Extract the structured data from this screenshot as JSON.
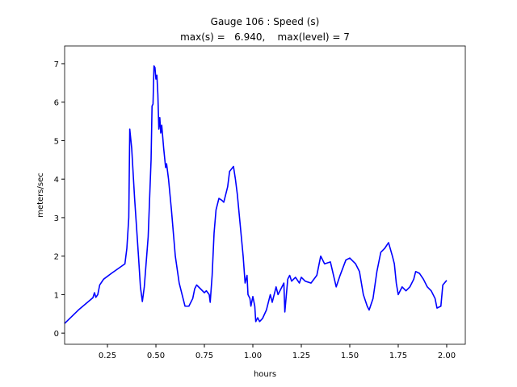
{
  "chart_data": {
    "type": "line",
    "title": "Gauge 106 : Speed (s)",
    "subtitle": "max(s) =   6.940,    max(level) = 7",
    "x_label": "hours",
    "y_label": "meters/sec",
    "xlim": [
      0.029,
      2.096
    ],
    "ylim": [
      -0.29,
      7.46
    ],
    "xticks": [
      0.25,
      {
        "value": 0.5,
        "label": "0.50"
      },
      0.75,
      {
        "value": 1.0,
        "label": "1.00"
      },
      1.25,
      {
        "value": 1.5,
        "label": "1.50"
      },
      1.75,
      {
        "value": 2.0,
        "label": "2.00"
      }
    ],
    "yticks": [
      0,
      1,
      2,
      3,
      4,
      5,
      6,
      7
    ],
    "grid": false,
    "series": [
      {
        "name": "speed",
        "color": "#0000ff",
        "x": [
          0.029,
          0.1,
          0.175,
          0.183,
          0.19,
          0.2,
          0.21,
          0.23,
          0.27,
          0.34,
          0.35,
          0.36,
          0.365,
          0.375,
          0.39,
          0.41,
          0.42,
          0.43,
          0.44,
          0.46,
          0.475,
          0.48,
          0.485,
          0.49,
          0.495,
          0.5,
          0.505,
          0.51,
          0.515,
          0.52,
          0.525,
          0.53,
          0.54,
          0.55,
          0.555,
          0.565,
          0.58,
          0.6,
          0.62,
          0.64,
          0.65,
          0.67,
          0.69,
          0.7,
          0.71,
          0.73,
          0.75,
          0.76,
          0.775,
          0.78,
          0.79,
          0.8,
          0.81,
          0.825,
          0.84,
          0.85,
          0.87,
          0.88,
          0.9,
          0.91,
          0.92,
          0.935,
          0.95,
          0.96,
          0.97,
          0.975,
          0.985,
          0.99,
          1.0,
          1.01,
          1.015,
          1.025,
          1.035,
          1.05,
          1.07,
          1.09,
          1.1,
          1.12,
          1.13,
          1.16,
          1.165,
          1.18,
          1.19,
          1.2,
          1.22,
          1.24,
          1.25,
          1.27,
          1.3,
          1.33,
          1.35,
          1.37,
          1.4,
          1.43,
          1.45,
          1.48,
          1.5,
          1.53,
          1.55,
          1.57,
          1.59,
          1.6,
          1.62,
          1.64,
          1.66,
          1.68,
          1.7,
          1.72,
          1.73,
          1.74,
          1.75,
          1.77,
          1.79,
          1.81,
          1.83,
          1.84,
          1.86,
          1.88,
          1.9,
          1.92,
          1.94,
          1.95,
          1.97,
          1.98,
          2.0
        ],
        "values": [
          0.25,
          0.6,
          0.92,
          1.05,
          0.93,
          1.0,
          1.25,
          1.4,
          1.55,
          1.8,
          2.2,
          3.0,
          5.3,
          4.8,
          3.5,
          2.0,
          1.2,
          0.82,
          1.2,
          2.5,
          4.5,
          5.9,
          5.95,
          6.94,
          6.9,
          6.6,
          6.7,
          6.2,
          5.3,
          5.6,
          5.2,
          5.4,
          4.8,
          4.3,
          4.4,
          4.0,
          3.2,
          2.0,
          1.3,
          0.9,
          0.7,
          0.7,
          0.9,
          1.15,
          1.25,
          1.15,
          1.05,
          1.1,
          1.0,
          0.8,
          1.5,
          2.6,
          3.2,
          3.5,
          3.45,
          3.4,
          3.8,
          4.2,
          4.33,
          4.0,
          3.6,
          2.8,
          2.0,
          1.3,
          1.5,
          1.0,
          0.9,
          0.7,
          0.95,
          0.7,
          0.3,
          0.4,
          0.3,
          0.38,
          0.6,
          1.0,
          0.8,
          1.2,
          1.0,
          1.3,
          0.55,
          1.4,
          1.5,
          1.35,
          1.45,
          1.3,
          1.45,
          1.35,
          1.3,
          1.5,
          2.0,
          1.8,
          1.85,
          1.2,
          1.5,
          1.9,
          1.95,
          1.8,
          1.6,
          1.0,
          0.7,
          0.6,
          0.9,
          1.6,
          2.1,
          2.2,
          2.35,
          2.0,
          1.8,
          1.3,
          1.0,
          1.2,
          1.1,
          1.2,
          1.4,
          1.6,
          1.55,
          1.4,
          1.2,
          1.1,
          0.9,
          0.65,
          0.7,
          1.25,
          1.37
        ]
      }
    ]
  }
}
